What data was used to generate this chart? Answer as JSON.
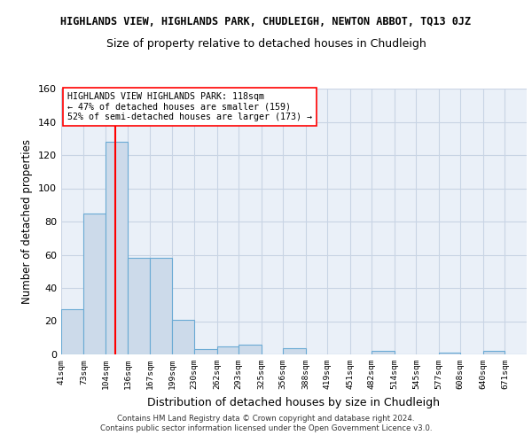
{
  "title": "HIGHLANDS VIEW, HIGHLANDS PARK, CHUDLEIGH, NEWTON ABBOT, TQ13 0JZ",
  "subtitle": "Size of property relative to detached houses in Chudleigh",
  "xlabel": "Distribution of detached houses by size in Chudleigh",
  "ylabel": "Number of detached properties",
  "bin_labels": [
    "41sqm",
    "73sqm",
    "104sqm",
    "136sqm",
    "167sqm",
    "199sqm",
    "230sqm",
    "262sqm",
    "293sqm",
    "325sqm",
    "356sqm",
    "388sqm",
    "419sqm",
    "451sqm",
    "482sqm",
    "514sqm",
    "545sqm",
    "577sqm",
    "608sqm",
    "640sqm",
    "671sqm"
  ],
  "bar_values": [
    27,
    85,
    128,
    58,
    58,
    21,
    3,
    5,
    6,
    0,
    4,
    0,
    0,
    0,
    2,
    0,
    0,
    1,
    0,
    2,
    0
  ],
  "bar_color": "#ccdaea",
  "bar_edge_color": "#6aaad4",
  "bar_linewidth": 0.8,
  "grid_color": "#c8d4e4",
  "background_color": "#eaf0f8",
  "vline_x": 118,
  "vline_color": "red",
  "annotation_text": "HIGHLANDS VIEW HIGHLANDS PARK: 118sqm\n← 47% of detached houses are smaller (159)\n52% of semi-detached houses are larger (173) →",
  "annotation_box_color": "white",
  "annotation_box_edge": "red",
  "ylim": [
    0,
    160
  ],
  "yticks": [
    0,
    20,
    40,
    60,
    80,
    100,
    120,
    140,
    160
  ],
  "footer_text": "Contains HM Land Registry data © Crown copyright and database right 2024.\nContains public sector information licensed under the Open Government Licence v3.0.",
  "bin_edges": [
    41,
    73,
    104,
    136,
    167,
    199,
    230,
    262,
    293,
    325,
    356,
    388,
    419,
    451,
    482,
    514,
    545,
    577,
    608,
    640,
    671,
    702
  ]
}
